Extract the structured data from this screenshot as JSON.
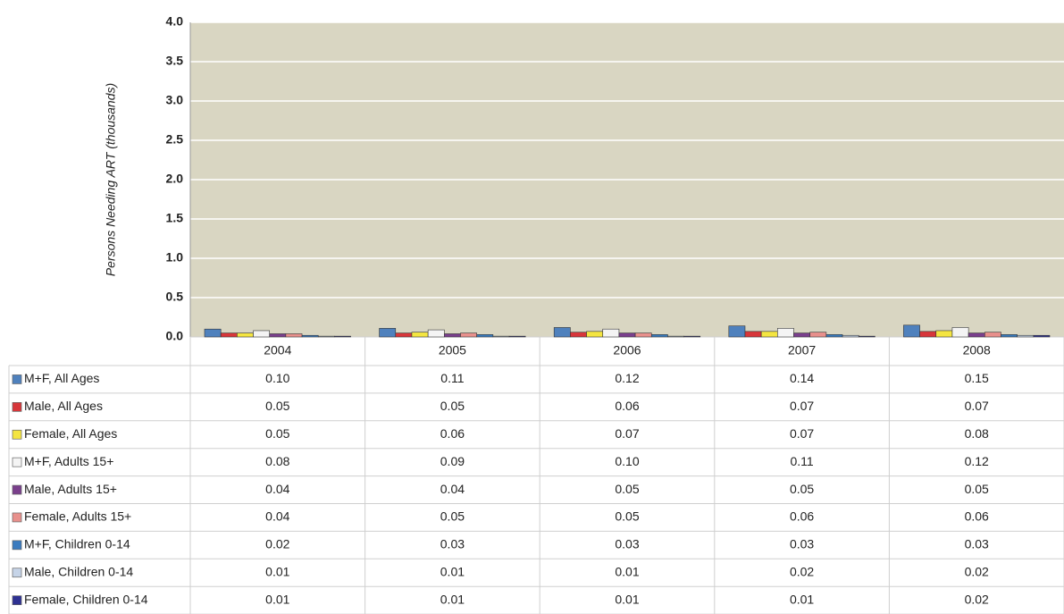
{
  "chart_data": {
    "type": "bar",
    "y_label": "Persons Needing ART (thousands)",
    "categories": [
      "2004",
      "2005",
      "2006",
      "2007",
      "2008"
    ],
    "ylim": [
      0,
      4
    ],
    "yticks": [
      {
        "value": 0,
        "label": "0.0"
      },
      0.5,
      {
        "value": 1,
        "label": "1.0"
      },
      1.5,
      {
        "value": 2,
        "label": "2.0"
      },
      2.5,
      {
        "value": 3,
        "label": "3.0"
      },
      3.5,
      {
        "value": 4,
        "label": "4.0"
      }
    ],
    "grid": true,
    "series": [
      {
        "name": "M+F, All Ages",
        "color": "#4f81bd",
        "values": [
          0.1,
          0.11,
          0.12,
          0.14,
          0.15
        ],
        "value_labels": [
          "0.10",
          "0.11",
          "0.12",
          "0.14",
          "0.15"
        ]
      },
      {
        "name": "Male, All Ages",
        "color": "#d7363a",
        "values": [
          0.05,
          0.05,
          0.06,
          0.07,
          0.07
        ],
        "value_labels": [
          "0.05",
          "0.05",
          "0.06",
          "0.07",
          "0.07"
        ]
      },
      {
        "name": "Female, All Ages",
        "color": "#f4e541",
        "values": [
          0.05,
          0.06,
          0.07,
          0.07,
          0.08
        ],
        "value_labels": [
          "0.05",
          "0.06",
          "0.07",
          "0.07",
          "0.08"
        ]
      },
      {
        "name": "M+F, Adults 15+",
        "color": "#f4f4f4",
        "values": [
          0.08,
          0.09,
          0.1,
          0.11,
          0.12
        ],
        "value_labels": [
          "0.08",
          "0.09",
          "0.10",
          "0.11",
          "0.12"
        ]
      },
      {
        "name": "Male, Adults 15+",
        "color": "#7a3f8c",
        "values": [
          0.04,
          0.04,
          0.05,
          0.05,
          0.05
        ],
        "value_labels": [
          "0.04",
          "0.04",
          "0.05",
          "0.05",
          "0.05"
        ]
      },
      {
        "name": "Female, Adults 15+",
        "color": "#e8908c",
        "values": [
          0.04,
          0.05,
          0.05,
          0.06,
          0.06
        ],
        "value_labels": [
          "0.04",
          "0.05",
          "0.05",
          "0.06",
          "0.06"
        ]
      },
      {
        "name": "M+F, Children 0-14",
        "color": "#3a7bbf",
        "values": [
          0.02,
          0.03,
          0.03,
          0.03,
          0.03
        ],
        "value_labels": [
          "0.02",
          "0.03",
          "0.03",
          "0.03",
          "0.03"
        ]
      },
      {
        "name": "Male, Children 0-14",
        "color": "#c6d4e8",
        "values": [
          0.01,
          0.01,
          0.01,
          0.02,
          0.02
        ],
        "value_labels": [
          "0.01",
          "0.01",
          "0.01",
          "0.02",
          "0.02"
        ]
      },
      {
        "name": "Female, Children 0-14",
        "color": "#2e3192",
        "values": [
          0.01,
          0.01,
          0.01,
          0.01,
          0.02
        ],
        "value_labels": [
          "0.01",
          "0.01",
          "0.01",
          "0.01",
          "0.02"
        ]
      }
    ]
  }
}
